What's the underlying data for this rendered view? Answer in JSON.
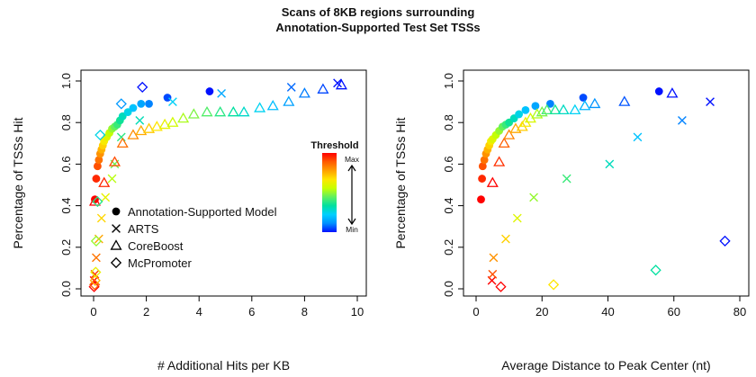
{
  "figure": {
    "title_line1": "Scans of 8KB regions surrounding",
    "title_line2": "Annotation-Supported Test Set TSSs"
  },
  "legend": {
    "items": [
      {
        "label": "Annotation-Supported Model",
        "marker": "circle"
      },
      {
        "label": "ARTS",
        "marker": "x"
      },
      {
        "label": "CoreBoost",
        "marker": "triangle"
      },
      {
        "label": "McPromoter",
        "marker": "diamond"
      }
    ]
  },
  "colorbar": {
    "title": "Threshold",
    "max_label": "Max",
    "min_label": "Min",
    "colors": [
      "#ff0000",
      "#ff5a00",
      "#ffa000",
      "#ffe600",
      "#c8ff00",
      "#60f060",
      "#00e0a0",
      "#00d0ff",
      "#0090ff",
      "#0010ff"
    ]
  },
  "chart_data": [
    {
      "type": "scatter",
      "xlabel": "# Additional Hits per KB",
      "ylabel": "Percentage of TSSs Hit",
      "xlim": [
        0,
        10
      ],
      "ylim": [
        0,
        1.0
      ],
      "xticks": [
        "0",
        "2",
        "4",
        "6",
        "8",
        "10"
      ],
      "yticks": [
        "0.0",
        "0.2",
        "0.4",
        "0.6",
        "0.8",
        "1.0"
      ],
      "legend_position": "center",
      "series": [
        {
          "name": "Annotation-Supported Model",
          "marker": "circle",
          "points": [
            [
              0.05,
              0.43
            ],
            [
              0.1,
              0.53
            ],
            [
              0.15,
              0.59
            ],
            [
              0.2,
              0.62
            ],
            [
              0.25,
              0.65
            ],
            [
              0.3,
              0.67
            ],
            [
              0.35,
              0.69
            ],
            [
              0.4,
              0.71
            ],
            [
              0.5,
              0.73
            ],
            [
              0.6,
              0.75
            ],
            [
              0.7,
              0.77
            ],
            [
              0.8,
              0.78
            ],
            [
              0.9,
              0.79
            ],
            [
              1.0,
              0.81
            ],
            [
              1.1,
              0.83
            ],
            [
              1.3,
              0.85
            ],
            [
              1.5,
              0.87
            ],
            [
              1.8,
              0.89
            ],
            [
              2.1,
              0.89
            ],
            [
              2.8,
              0.92
            ],
            [
              4.4,
              0.95
            ]
          ]
        },
        {
          "name": "ARTS",
          "marker": "x",
          "points": [
            [
              0.02,
              0.04
            ],
            [
              0.05,
              0.07
            ],
            [
              0.1,
              0.15
            ],
            [
              0.2,
              0.24
            ],
            [
              0.3,
              0.34
            ],
            [
              0.45,
              0.44
            ],
            [
              0.7,
              0.53
            ],
            [
              0.8,
              0.6
            ],
            [
              1.05,
              0.73
            ],
            [
              1.75,
              0.81
            ],
            [
              3.0,
              0.9
            ],
            [
              4.85,
              0.94
            ],
            [
              7.5,
              0.97
            ],
            [
              9.25,
              0.99
            ]
          ]
        },
        {
          "name": "CoreBoost",
          "marker": "triangle",
          "points": [
            [
              0.05,
              0.42
            ],
            [
              0.4,
              0.51
            ],
            [
              0.8,
              0.61
            ],
            [
              1.1,
              0.7
            ],
            [
              1.5,
              0.74
            ],
            [
              1.8,
              0.76
            ],
            [
              2.1,
              0.77
            ],
            [
              2.4,
              0.78
            ],
            [
              2.7,
              0.79
            ],
            [
              3.0,
              0.8
            ],
            [
              3.4,
              0.82
            ],
            [
              3.8,
              0.84
            ],
            [
              4.3,
              0.85
            ],
            [
              4.8,
              0.85
            ],
            [
              5.3,
              0.85
            ],
            [
              5.7,
              0.85
            ],
            [
              6.3,
              0.87
            ],
            [
              6.8,
              0.88
            ],
            [
              7.4,
              0.9
            ],
            [
              8.0,
              0.94
            ],
            [
              8.7,
              0.96
            ],
            [
              9.4,
              0.98
            ]
          ]
        },
        {
          "name": "McPromoter",
          "marker": "diamond",
          "points": [
            [
              0.02,
              0.01
            ],
            [
              0.04,
              0.02
            ],
            [
              0.06,
              0.04
            ],
            [
              0.08,
              0.08
            ],
            [
              0.1,
              0.23
            ],
            [
              0.15,
              0.42
            ],
            [
              0.25,
              0.74
            ],
            [
              1.05,
              0.89
            ],
            [
              1.85,
              0.97
            ]
          ]
        }
      ]
    },
    {
      "type": "scatter",
      "xlabel": "Average Distance to Peak Center (nt)",
      "ylabel": "Percentage of TSSs Hit",
      "xlim": [
        0,
        80
      ],
      "ylim": [
        0,
        1.0
      ],
      "xticks": [
        "0",
        "20",
        "40",
        "60",
        "80"
      ],
      "yticks": [
        "0.0",
        "0.2",
        "0.4",
        "0.6",
        "0.8",
        "1.0"
      ],
      "series": [
        {
          "name": "Annotation-Supported Model",
          "marker": "circle",
          "points": [
            [
              1.5,
              0.43
            ],
            [
              1.8,
              0.53
            ],
            [
              2.0,
              0.59
            ],
            [
              2.5,
              0.62
            ],
            [
              3.0,
              0.65
            ],
            [
              3.5,
              0.67
            ],
            [
              4.0,
              0.69
            ],
            [
              4.5,
              0.71
            ],
            [
              5.0,
              0.72
            ],
            [
              6.0,
              0.74
            ],
            [
              7.0,
              0.76
            ],
            [
              8.0,
              0.78
            ],
            [
              9.0,
              0.79
            ],
            [
              10.0,
              0.8
            ],
            [
              11.5,
              0.82
            ],
            [
              13.0,
              0.84
            ],
            [
              15.0,
              0.86
            ],
            [
              18.0,
              0.88
            ],
            [
              22.5,
              0.89
            ],
            [
              32.5,
              0.92
            ],
            [
              55.5,
              0.95
            ]
          ]
        },
        {
          "name": "ARTS",
          "marker": "x",
          "points": [
            [
              4.8,
              0.04
            ],
            [
              5.0,
              0.07
            ],
            [
              5.3,
              0.15
            ],
            [
              9.0,
              0.24
            ],
            [
              12.5,
              0.34
            ],
            [
              17.5,
              0.44
            ],
            [
              27.5,
              0.53
            ],
            [
              40.5,
              0.6
            ],
            [
              49.0,
              0.73
            ],
            [
              62.5,
              0.81
            ],
            [
              71.0,
              0.9
            ]
          ]
        },
        {
          "name": "CoreBoost",
          "marker": "triangle",
          "points": [
            [
              5.0,
              0.51
            ],
            [
              7.0,
              0.61
            ],
            [
              8.5,
              0.7
            ],
            [
              10.0,
              0.74
            ],
            [
              12.0,
              0.77
            ],
            [
              14.0,
              0.78
            ],
            [
              15.0,
              0.8
            ],
            [
              16.5,
              0.82
            ],
            [
              18.5,
              0.84
            ],
            [
              20.0,
              0.85
            ],
            [
              21.5,
              0.86
            ],
            [
              24.0,
              0.86
            ],
            [
              26.5,
              0.86
            ],
            [
              30.0,
              0.86
            ],
            [
              33.0,
              0.88
            ],
            [
              36.0,
              0.89
            ],
            [
              45.0,
              0.9
            ],
            [
              59.5,
              0.94
            ]
          ]
        },
        {
          "name": "McPromoter",
          "marker": "diamond",
          "points": [
            [
              7.5,
              0.01
            ],
            [
              23.5,
              0.02
            ],
            [
              54.5,
              0.09
            ],
            [
              75.5,
              0.23
            ]
          ]
        }
      ]
    }
  ]
}
